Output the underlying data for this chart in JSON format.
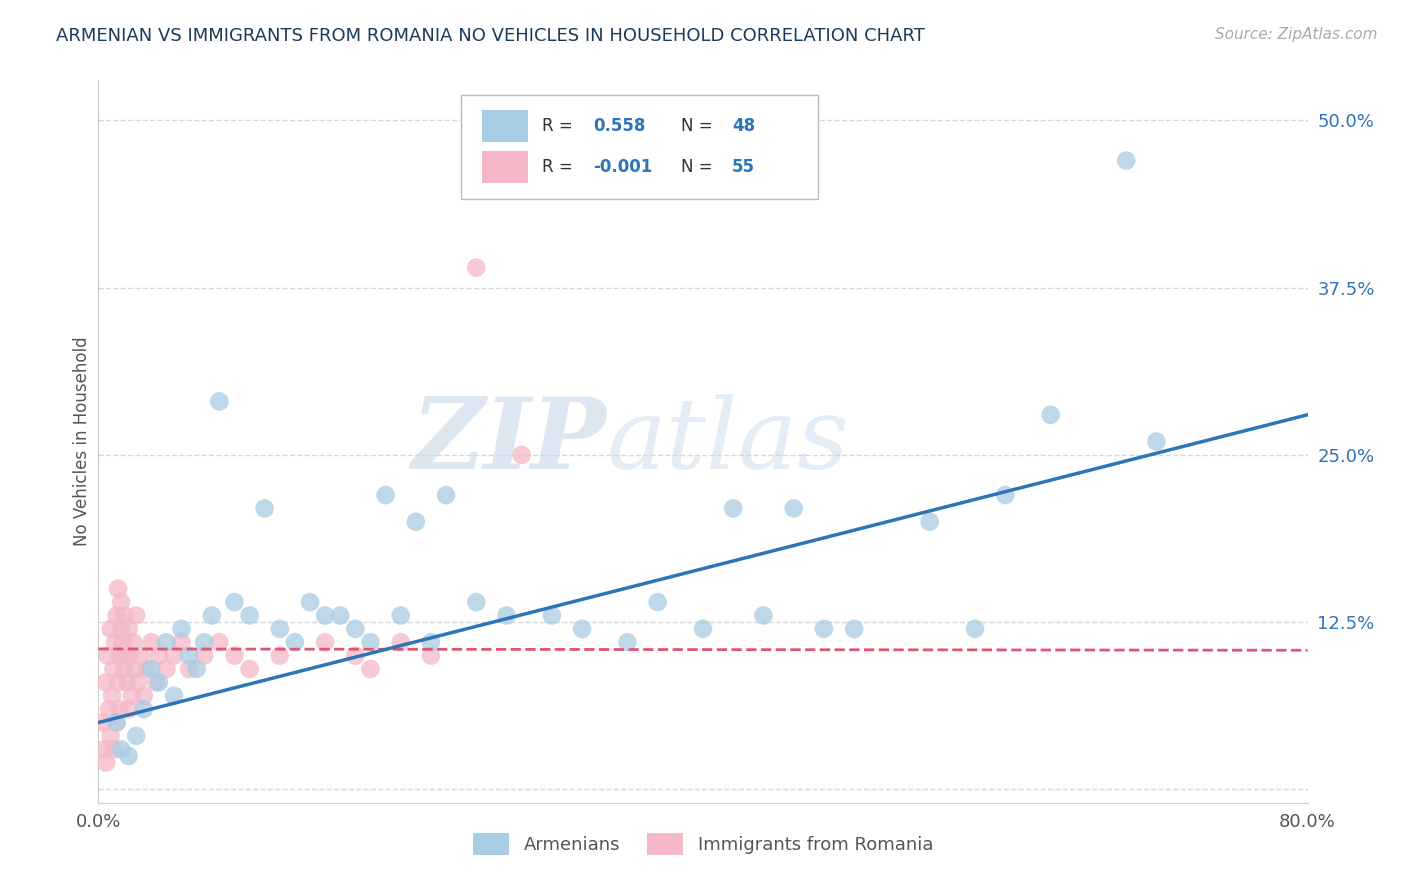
{
  "title": "ARMENIAN VS IMMIGRANTS FROM ROMANIA NO VEHICLES IN HOUSEHOLD CORRELATION CHART",
  "source": "Source: ZipAtlas.com",
  "ylabel": "No Vehicles in Household",
  "xlim": [
    0.0,
    80.0
  ],
  "ylim": [
    -1.0,
    53.0
  ],
  "ytick_labels": [
    "",
    "12.5%",
    "25.0%",
    "37.5%",
    "50.0%"
  ],
  "ytick_values": [
    0.0,
    12.5,
    25.0,
    37.5,
    50.0
  ],
  "legend_r_blue": "0.558",
  "legend_n_blue": "48",
  "legend_r_pink": "-0.001",
  "legend_n_pink": "55",
  "blue_color": "#a8cce4",
  "pink_color": "#f4b8c8",
  "trend_blue_color": "#2e75b6",
  "trend_pink_color": "#e05570",
  "watermark_zip": "ZIP",
  "watermark_atlas": "atlas",
  "blue_scatter_x": [
    1.2,
    1.5,
    2.0,
    2.5,
    3.0,
    3.5,
    4.0,
    4.5,
    5.0,
    5.5,
    6.0,
    6.5,
    7.0,
    7.5,
    8.0,
    9.0,
    10.0,
    11.0,
    12.0,
    13.0,
    14.0,
    15.0,
    16.0,
    17.0,
    18.0,
    19.0,
    20.0,
    21.0,
    22.0,
    23.0,
    25.0,
    27.0,
    30.0,
    32.0,
    35.0,
    37.0,
    40.0,
    42.0,
    44.0,
    46.0,
    48.0,
    50.0,
    55.0,
    58.0,
    60.0,
    63.0,
    68.0,
    70.0
  ],
  "blue_scatter_y": [
    5.0,
    3.0,
    2.5,
    4.0,
    6.0,
    9.0,
    8.0,
    11.0,
    7.0,
    12.0,
    10.0,
    9.0,
    11.0,
    13.0,
    29.0,
    14.0,
    13.0,
    21.0,
    12.0,
    11.0,
    14.0,
    13.0,
    13.0,
    12.0,
    11.0,
    22.0,
    13.0,
    20.0,
    11.0,
    22.0,
    14.0,
    13.0,
    13.0,
    12.0,
    11.0,
    14.0,
    12.0,
    21.0,
    13.0,
    21.0,
    12.0,
    12.0,
    20.0,
    12.0,
    22.0,
    28.0,
    47.0,
    26.0
  ],
  "pink_scatter_x": [
    0.3,
    0.4,
    0.5,
    0.5,
    0.6,
    0.7,
    0.8,
    0.8,
    0.9,
    1.0,
    1.0,
    1.1,
    1.2,
    1.2,
    1.3,
    1.3,
    1.4,
    1.4,
    1.5,
    1.5,
    1.6,
    1.7,
    1.7,
    1.8,
    1.9,
    2.0,
    2.0,
    2.1,
    2.2,
    2.3,
    2.4,
    2.5,
    2.6,
    2.8,
    3.0,
    3.2,
    3.5,
    3.8,
    4.0,
    4.5,
    5.0,
    5.5,
    6.0,
    7.0,
    8.0,
    9.0,
    10.0,
    12.0,
    15.0,
    17.0,
    18.0,
    20.0,
    22.0,
    25.0,
    28.0
  ],
  "pink_scatter_y": [
    5.0,
    3.0,
    8.0,
    2.0,
    10.0,
    6.0,
    12.0,
    4.0,
    7.0,
    9.0,
    3.0,
    11.0,
    13.0,
    5.0,
    15.0,
    8.0,
    10.0,
    6.0,
    14.0,
    12.0,
    11.0,
    9.0,
    13.0,
    10.0,
    8.0,
    12.0,
    6.0,
    10.0,
    7.0,
    11.0,
    9.0,
    13.0,
    8.0,
    10.0,
    7.0,
    9.0,
    11.0,
    8.0,
    10.0,
    9.0,
    10.0,
    11.0,
    9.0,
    10.0,
    11.0,
    10.0,
    9.0,
    10.0,
    11.0,
    10.0,
    9.0,
    11.0,
    10.0,
    39.0,
    25.0
  ],
  "blue_trend_x0": 0.0,
  "blue_trend_y0": 5.0,
  "blue_trend_x1": 80.0,
  "blue_trend_y1": 28.0,
  "pink_trend_x0": 0.0,
  "pink_trend_y0": 10.5,
  "pink_trend_x1": 80.0,
  "pink_trend_y1": 10.4,
  "grid_color": "#cccccc",
  "bg_color": "#ffffff",
  "legend_label_blue": "Armenians",
  "legend_label_pink": "Immigrants from Romania",
  "legend_text_color": "#2e75b6",
  "legend_label_color": "#555555"
}
